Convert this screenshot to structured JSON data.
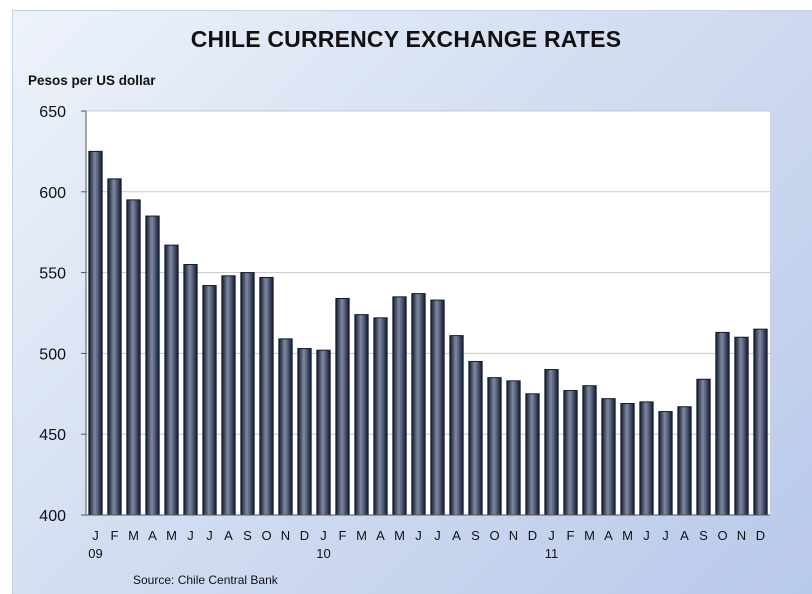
{
  "title": "CHILE CURRENCY EXCHANGE RATES",
  "ylabel": "Pesos per US dollar",
  "source": "Source: Chile Central Bank",
  "colors": {
    "bar": "#111a2e",
    "bar_highlight": "#7f8aa3",
    "plot_bg": "#ffffff",
    "grid": "#c8c8c8"
  },
  "chart_data": {
    "type": "bar",
    "title": "CHILE CURRENCY EXCHANGE RATES",
    "ylabel": "Pesos per US dollar",
    "xlabel": "",
    "ylim": [
      400,
      650
    ],
    "yticks": [
      400,
      450,
      500,
      550,
      600,
      650
    ],
    "grid": true,
    "categories": [
      "J",
      "F",
      "M",
      "A",
      "M",
      "J",
      "J",
      "A",
      "S",
      "O",
      "N",
      "D",
      "J",
      "F",
      "M",
      "A",
      "M",
      "J",
      "J",
      "A",
      "S",
      "O",
      "N",
      "D",
      "J",
      "F",
      "M",
      "A",
      "M",
      "J",
      "J",
      "A",
      "S",
      "O",
      "N",
      "D"
    ],
    "year_labels": [
      {
        "index": 0,
        "label": "09"
      },
      {
        "index": 12,
        "label": "10"
      },
      {
        "index": 24,
        "label": "11"
      }
    ],
    "values": [
      625,
      608,
      595,
      585,
      567,
      555,
      542,
      548,
      550,
      547,
      509,
      503,
      502,
      534,
      524,
      522,
      535,
      537,
      533,
      511,
      495,
      485,
      483,
      475,
      490,
      477,
      480,
      472,
      469,
      470,
      464,
      467,
      484,
      513,
      510,
      515
    ]
  }
}
